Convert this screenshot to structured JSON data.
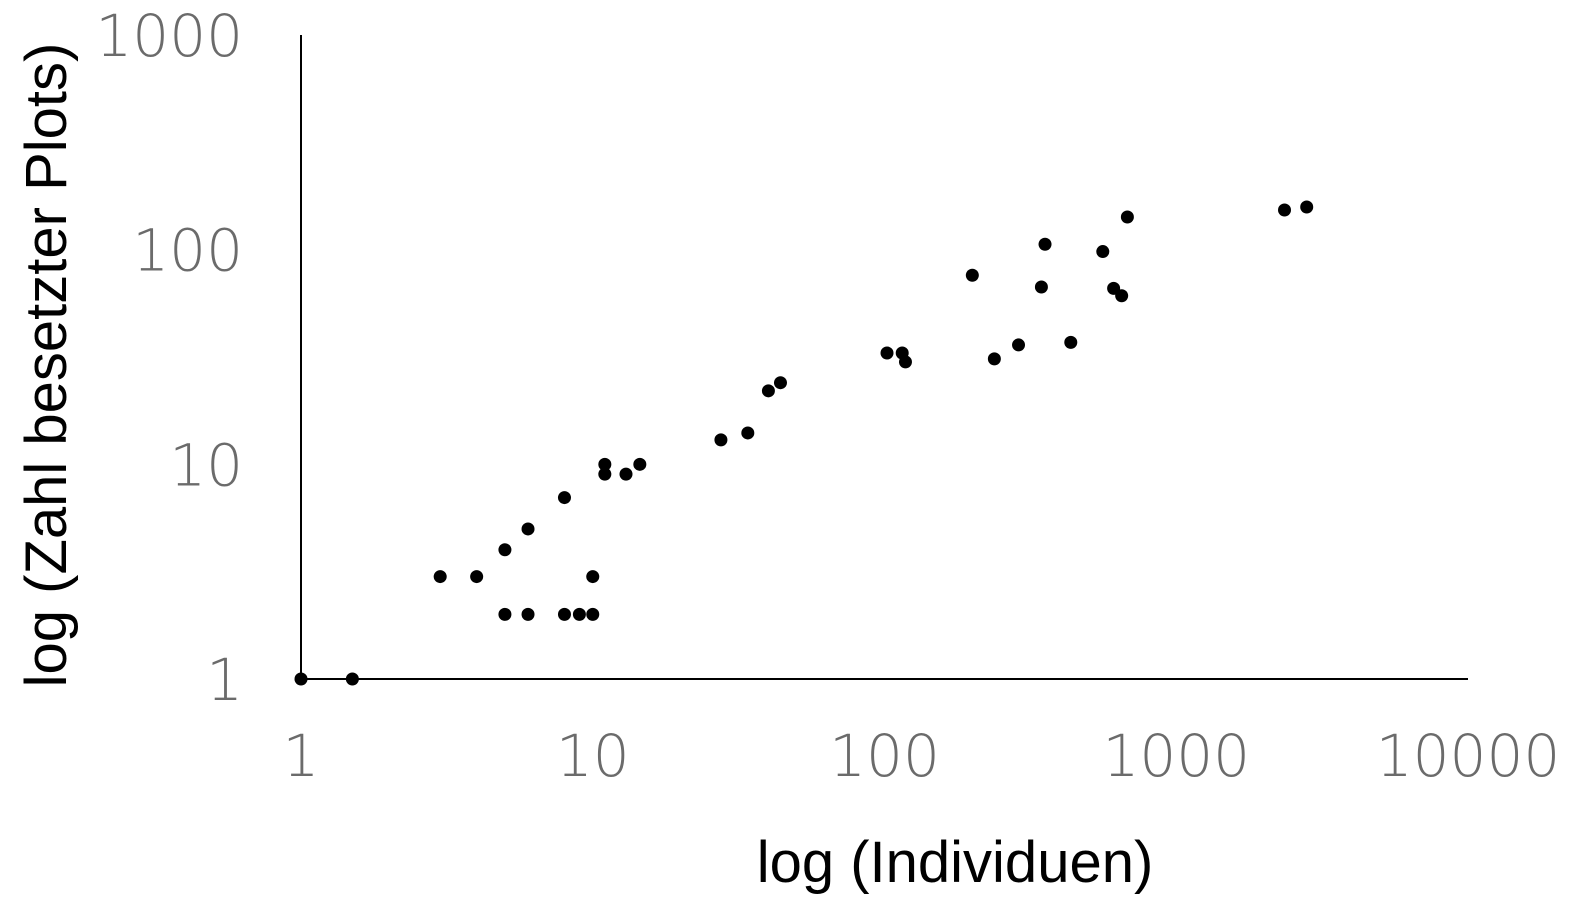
{
  "chart_data": {
    "type": "scatter",
    "title": "",
    "xlabel": "log (Individuen)",
    "ylabel": "log (Zahl besetzter Plots)",
    "x_scale": "log",
    "y_scale": "log",
    "xlim": [
      1,
      10000
    ],
    "ylim": [
      1,
      1000
    ],
    "x_ticks": [
      1,
      10,
      100,
      1000,
      10000
    ],
    "x_tick_labels": [
      "1",
      "10",
      "100",
      "1000",
      "10000"
    ],
    "y_ticks": [
      1,
      10,
      100,
      1000
    ],
    "y_tick_labels": [
      "1",
      "10",
      "100",
      "1000"
    ],
    "grid": false,
    "legend": "none",
    "marker_color": "#000000",
    "points": [
      {
        "x": 1,
        "y": 1
      },
      {
        "x": 1.5,
        "y": 1
      },
      {
        "x": 3,
        "y": 3
      },
      {
        "x": 4,
        "y": 3
      },
      {
        "x": 5,
        "y": 2
      },
      {
        "x": 5,
        "y": 4
      },
      {
        "x": 6,
        "y": 2
      },
      {
        "x": 6,
        "y": 5
      },
      {
        "x": 8,
        "y": 2
      },
      {
        "x": 8,
        "y": 7
      },
      {
        "x": 9,
        "y": 2
      },
      {
        "x": 10,
        "y": 2
      },
      {
        "x": 10,
        "y": 3
      },
      {
        "x": 11,
        "y": 9
      },
      {
        "x": 11,
        "y": 10
      },
      {
        "x": 13,
        "y": 9
      },
      {
        "x": 14.5,
        "y": 10
      },
      {
        "x": 27.5,
        "y": 13
      },
      {
        "x": 34,
        "y": 14
      },
      {
        "x": 40,
        "y": 22
      },
      {
        "x": 44,
        "y": 24
      },
      {
        "x": 102,
        "y": 33
      },
      {
        "x": 115,
        "y": 33
      },
      {
        "x": 118,
        "y": 30
      },
      {
        "x": 200,
        "y": 76
      },
      {
        "x": 238,
        "y": 31
      },
      {
        "x": 288,
        "y": 36
      },
      {
        "x": 345,
        "y": 67
      },
      {
        "x": 355,
        "y": 106
      },
      {
        "x": 435,
        "y": 37
      },
      {
        "x": 560,
        "y": 98
      },
      {
        "x": 610,
        "y": 66
      },
      {
        "x": 650,
        "y": 61
      },
      {
        "x": 680,
        "y": 142
      },
      {
        "x": 2350,
        "y": 153
      },
      {
        "x": 2800,
        "y": 158
      }
    ]
  }
}
